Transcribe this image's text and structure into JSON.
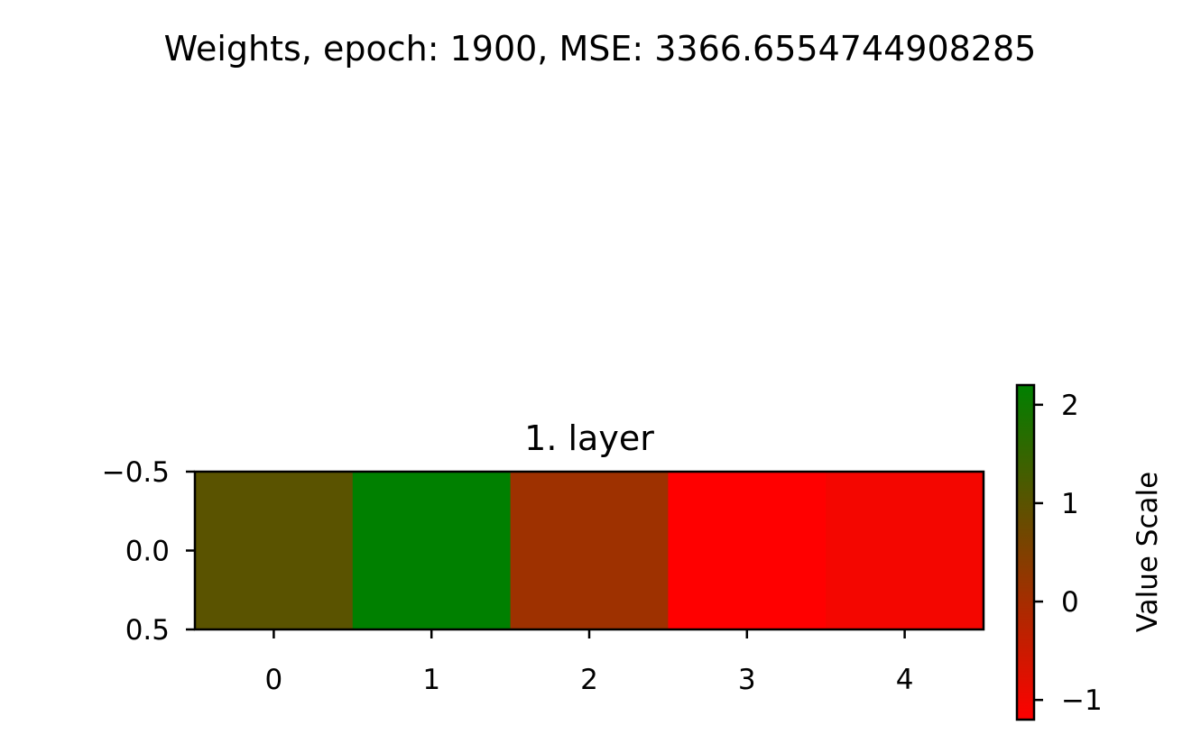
{
  "chart_data": {
    "type": "heatmap",
    "suptitle": "Weights, epoch: 1900, MSE: 3366.6554744908285",
    "title": "1. layer",
    "values": [
      [
        1.0,
        2.2,
        0.1,
        -1.2,
        -1.05
      ]
    ],
    "x_ticks": [
      "0",
      "1",
      "2",
      "3",
      "4"
    ],
    "y_ticks": [
      "−0.5",
      "0.0",
      "0.5"
    ],
    "colorbar": {
      "label": "Value Scale",
      "ticks": [
        "−1",
        "0",
        "1",
        "2"
      ],
      "tick_values": [
        -1,
        0,
        1,
        2
      ],
      "vmin": -1.2,
      "vmax": 2.2,
      "colors": [
        "#ff0000",
        "#008000"
      ]
    }
  }
}
